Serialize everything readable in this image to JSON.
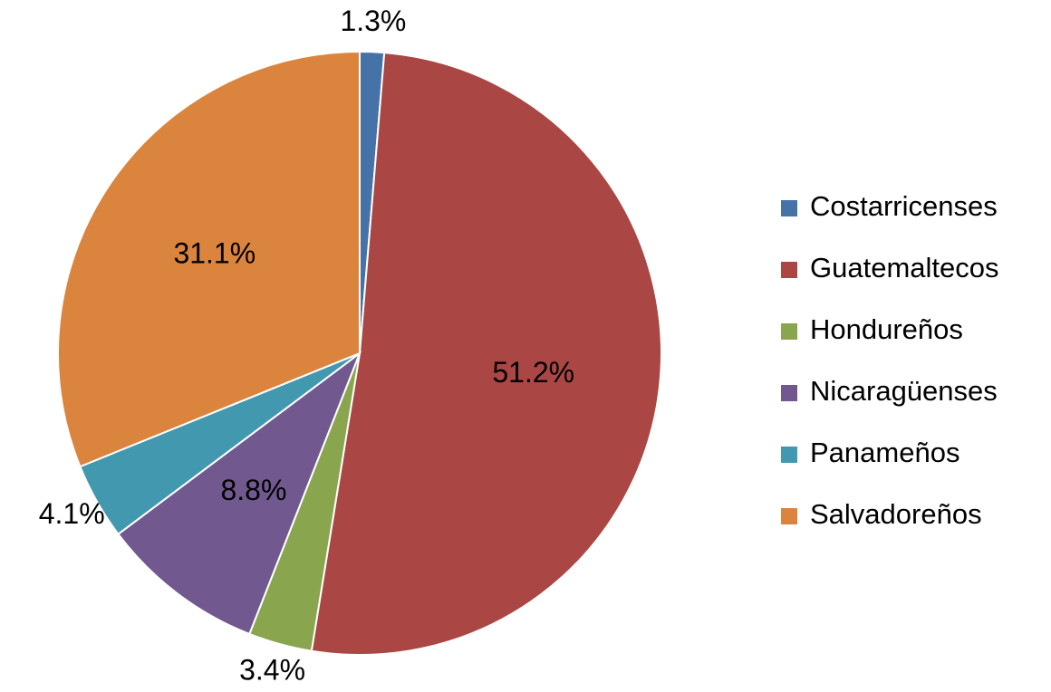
{
  "chart_data": {
    "type": "pie",
    "categories": [
      "Costarricenses",
      "Guatemaltecos",
      "Hondureños",
      "Nicaragüenses",
      "Panameños",
      "Salvadoreños"
    ],
    "values": [
      1.3,
      51.2,
      3.4,
      8.8,
      4.1,
      31.1
    ],
    "value_labels": [
      "1.3%",
      "51.2%",
      "3.4%",
      "8.8%",
      "4.1%",
      "31.1%"
    ],
    "colors": [
      "#4572a7",
      "#aa4643",
      "#89a54e",
      "#71588f",
      "#4198af",
      "#db843d"
    ],
    "legend": "right"
  }
}
